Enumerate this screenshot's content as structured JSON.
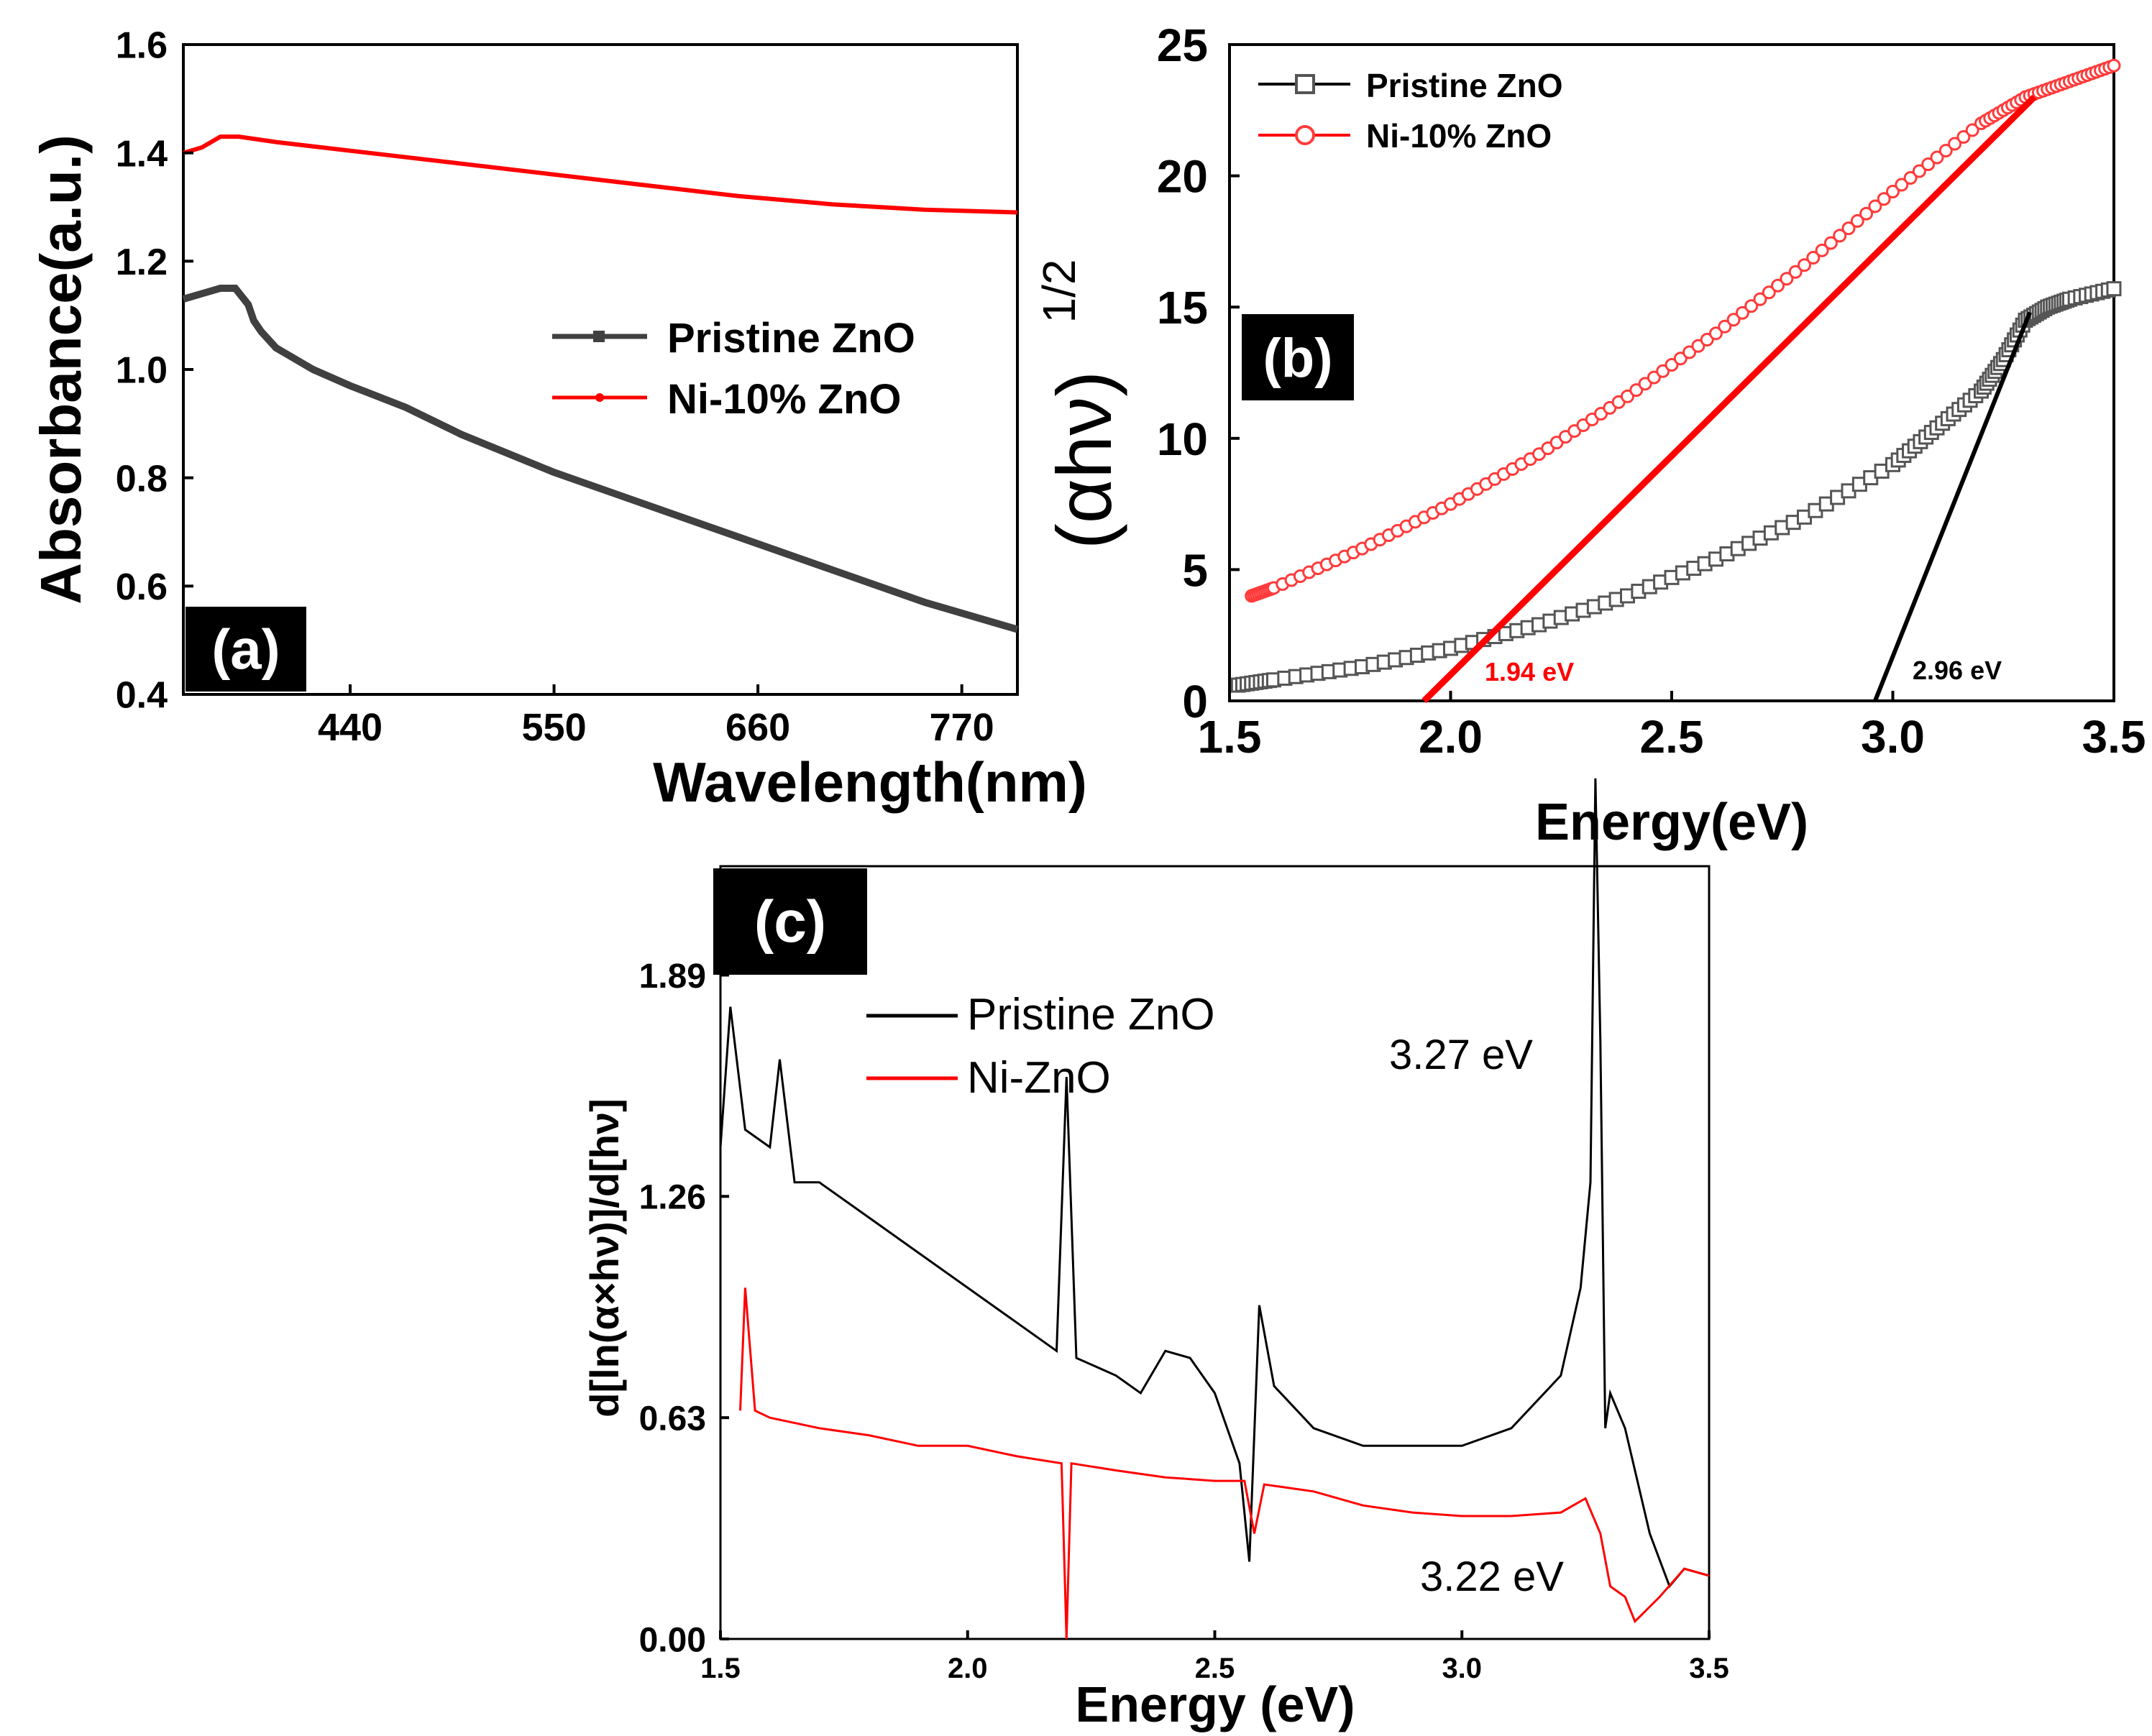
{
  "chart_data": [
    {
      "panel": "(a)",
      "type": "line",
      "xlabel": "Wavelength(nm)",
      "ylabel": "Absorbance(a.u.)",
      "xlim": [
        350,
        800
      ],
      "ylim": [
        0.4,
        1.6
      ],
      "x_ticks": [
        "440",
        "550",
        "660",
        "770"
      ],
      "y_ticks": [
        "0.4",
        "0.6",
        "0.8",
        "1.0",
        "1.2",
        "1.4",
        "1.6"
      ],
      "legend": [
        "Pristine ZnO",
        "Ni-10% ZnO"
      ],
      "legend_position": "center-right",
      "series": [
        {
          "name": "Pristine ZnO",
          "color": "#404040",
          "x": [
            350,
            360,
            370,
            378,
            385,
            388,
            392,
            400,
            420,
            440,
            470,
            500,
            550,
            600,
            650,
            700,
            750,
            800
          ],
          "y": [
            1.13,
            1.14,
            1.15,
            1.15,
            1.12,
            1.09,
            1.07,
            1.04,
            1.0,
            0.97,
            0.93,
            0.88,
            0.81,
            0.75,
            0.69,
            0.63,
            0.57,
            0.52
          ]
        },
        {
          "name": "Ni-10% ZnO",
          "color": "#ff0000",
          "x": [
            350,
            360,
            370,
            380,
            400,
            450,
            500,
            550,
            600,
            650,
            700,
            750,
            800
          ],
          "y": [
            1.4,
            1.41,
            1.43,
            1.43,
            1.42,
            1.4,
            1.38,
            1.36,
            1.34,
            1.32,
            1.305,
            1.295,
            1.29
          ]
        }
      ]
    },
    {
      "panel": "(b)",
      "type": "scatter",
      "xlabel": "Energy(eV)",
      "ylabel_main": "(αhν)",
      "ylabel_exp": "1/2",
      "xlim": [
        1.5,
        3.5
      ],
      "ylim": [
        0,
        25
      ],
      "x_ticks": [
        "1.5",
        "2.0",
        "2.5",
        "3.0",
        "3.5"
      ],
      "y_ticks": [
        "0",
        "5",
        "10",
        "15",
        "20",
        "25"
      ],
      "legend": [
        "Pristine ZnO",
        "Ni-10% ZnO"
      ],
      "legend_position": "top-left",
      "series": [
        {
          "name": "Pristine ZnO",
          "color": "#555555",
          "x": [
            1.52,
            1.6,
            1.8,
            2.0,
            2.2,
            2.4,
            2.6,
            2.8,
            3.0,
            3.1,
            3.2,
            3.25,
            3.3,
            3.35,
            3.4,
            3.5
          ],
          "y": [
            0.6,
            0.8,
            1.3,
            2.0,
            2.9,
            4.0,
            5.4,
            7.0,
            9.0,
            10.4,
            11.8,
            13.0,
            14.5,
            15.0,
            15.3,
            15.7
          ]
        },
        {
          "name": "Ni-10% ZnO",
          "color": "#ff3b3b",
          "x": [
            1.55,
            1.6,
            1.8,
            2.0,
            2.2,
            2.4,
            2.6,
            2.8,
            3.0,
            3.2,
            3.3,
            3.4,
            3.5
          ],
          "y": [
            4.0,
            4.3,
            5.8,
            7.5,
            9.4,
            11.6,
            14.0,
            16.6,
            19.4,
            22.0,
            23.0,
            23.6,
            24.2
          ]
        }
      ],
      "fit_lines": [
        {
          "color": "#ff0000",
          "x": [
            1.94,
            3.32
          ],
          "y": [
            0,
            23.0
          ],
          "label": "1.94 eV"
        },
        {
          "color": "#000000",
          "x": [
            2.96,
            3.31
          ],
          "y": [
            0,
            14.8
          ],
          "label": "2.96 eV"
        }
      ]
    },
    {
      "panel": "(c)",
      "type": "line",
      "xlabel": "Energy (eV)",
      "ylabel": "d[ln(α×hν)]/d[hν]",
      "xlim": [
        1.5,
        3.5
      ],
      "ylim": [
        0,
        2.2
      ],
      "x_ticks": [
        "1.5",
        "2.0",
        "2.5",
        "3.0",
        "3.5"
      ],
      "y_ticks": [
        "0.00",
        "0.63",
        "1.26",
        "1.89"
      ],
      "legend": [
        "Pristine ZnO",
        "Ni-ZnO"
      ],
      "legend_position": "top-left",
      "annotations": [
        "3.27 eV",
        "3.22 eV"
      ],
      "series": [
        {
          "name": "Pristine ZnO",
          "color": "#000000",
          "x": [
            1.5,
            1.52,
            1.55,
            1.6,
            1.62,
            1.65,
            1.7,
            1.8,
            1.9,
            2.0,
            2.1,
            2.18,
            2.2,
            2.22,
            2.3,
            2.35,
            2.4,
            2.45,
            2.5,
            2.55,
            2.57,
            2.59,
            2.62,
            2.7,
            2.8,
            2.9,
            3.0,
            3.1,
            3.2,
            3.24,
            3.26,
            3.27,
            3.28,
            3.29,
            3.3,
            3.33,
            3.38,
            3.42,
            3.45,
            3.5
          ],
          "y": [
            1.4,
            1.8,
            1.45,
            1.4,
            1.65,
            1.3,
            1.3,
            1.2,
            1.1,
            1.0,
            0.9,
            0.82,
            1.6,
            0.8,
            0.75,
            0.7,
            0.82,
            0.8,
            0.7,
            0.5,
            0.22,
            0.95,
            0.72,
            0.6,
            0.55,
            0.55,
            0.55,
            0.6,
            0.75,
            1.0,
            1.3,
            2.45,
            1.7,
            0.6,
            0.7,
            0.6,
            0.3,
            0.15,
            0.2,
            0.18
          ]
        },
        {
          "name": "Ni-ZnO",
          "color": "#ff0000",
          "x": [
            1.54,
            1.55,
            1.57,
            1.6,
            1.7,
            1.8,
            1.9,
            2.0,
            2.1,
            2.19,
            2.2,
            2.21,
            2.3,
            2.4,
            2.5,
            2.56,
            2.58,
            2.6,
            2.7,
            2.8,
            2.9,
            3.0,
            3.1,
            3.2,
            3.25,
            3.28,
            3.3,
            3.33,
            3.35,
            3.4,
            3.45,
            3.5
          ],
          "y": [
            0.65,
            1.0,
            0.65,
            0.63,
            0.6,
            0.58,
            0.55,
            0.55,
            0.52,
            0.5,
            0.0,
            0.5,
            0.48,
            0.46,
            0.45,
            0.45,
            0.3,
            0.44,
            0.42,
            0.38,
            0.36,
            0.35,
            0.35,
            0.36,
            0.4,
            0.3,
            0.15,
            0.12,
            0.05,
            0.12,
            0.2,
            0.18
          ]
        }
      ]
    }
  ]
}
